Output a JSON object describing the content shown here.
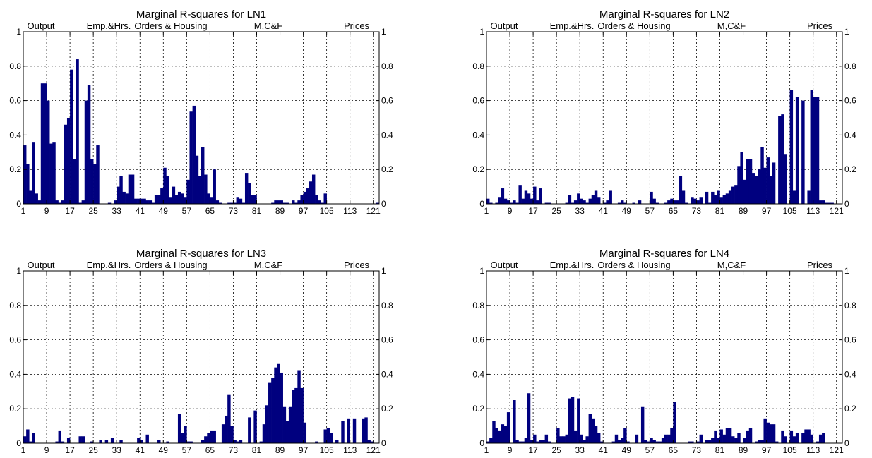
{
  "figure": {
    "bar_color": "#00007F",
    "grid_color": "#000000",
    "x_ticks": [
      1,
      9,
      17,
      25,
      33,
      41,
      49,
      57,
      65,
      73,
      81,
      89,
      97,
      105,
      113,
      121
    ],
    "y_ticks": [
      0,
      0.2,
      0.4,
      0.6,
      0.8,
      1
    ],
    "group_labels": [
      "Output",
      "Emp.&Hrs.",
      "Orders & Housing",
      "M,C&F",
      "Prices"
    ]
  },
  "chart_data": [
    {
      "type": "bar",
      "title": "Marginal R-squares for LN1",
      "grid": true,
      "xlim": [
        1,
        123
      ],
      "ylim": [
        0,
        1
      ],
      "values": [
        0.34,
        0.23,
        0.08,
        0.36,
        0.06,
        0.02,
        0.7,
        0.7,
        0.6,
        0.35,
        0.36,
        0.02,
        0.01,
        0.02,
        0.46,
        0.5,
        0.78,
        0.26,
        0.84,
        0.01,
        0.02,
        0.6,
        0.69,
        0.26,
        0.23,
        0.34,
        0.0,
        0.0,
        0.0,
        0.01,
        0.0,
        0.02,
        0.1,
        0.16,
        0.07,
        0.06,
        0.17,
        0.17,
        0.03,
        0.03,
        0.03,
        0.03,
        0.02,
        0.02,
        0.01,
        0.05,
        0.05,
        0.09,
        0.21,
        0.16,
        0.04,
        0.1,
        0.05,
        0.07,
        0.06,
        0.04,
        0.14,
        0.54,
        0.57,
        0.28,
        0.16,
        0.33,
        0.17,
        0.06,
        0.04,
        0.2,
        0.02,
        0.01,
        0.0,
        0.0,
        0.01,
        0.01,
        0.01,
        0.04,
        0.03,
        0.01,
        0.18,
        0.12,
        0.05,
        0.05,
        0.0,
        0.0,
        0.0,
        0.0,
        0.0,
        0.01,
        0.02,
        0.02,
        0.02,
        0.01,
        0.01,
        0.0,
        0.02,
        0.01,
        0.02,
        0.05,
        0.07,
        0.09,
        0.13,
        0.17,
        0.05,
        0.02,
        0.01,
        0.06,
        0.0,
        0.0,
        0.0,
        0.0,
        0.0,
        0.0,
        0.0,
        0.0,
        0.0,
        0.0,
        0.0,
        0.0,
        0.0,
        0.0,
        0.0,
        0.0,
        0.0,
        0.01,
        0.0
      ]
    },
    {
      "type": "bar",
      "title": "Marginal R-squares for LN2",
      "grid": true,
      "xlim": [
        1,
        123
      ],
      "ylim": [
        0,
        1
      ],
      "values": [
        0.03,
        0.01,
        0.0,
        0.01,
        0.04,
        0.09,
        0.03,
        0.02,
        0.01,
        0.02,
        0.01,
        0.11,
        0.03,
        0.08,
        0.06,
        0.03,
        0.1,
        0.02,
        0.09,
        0.0,
        0.01,
        0.01,
        0.0,
        0.0,
        0.0,
        0.0,
        0.0,
        0.01,
        0.05,
        0.01,
        0.02,
        0.06,
        0.03,
        0.02,
        0.01,
        0.03,
        0.05,
        0.08,
        0.04,
        0.0,
        0.01,
        0.02,
        0.08,
        0.0,
        0.0,
        0.01,
        0.02,
        0.01,
        0.0,
        0.0,
        0.01,
        0.0,
        0.02,
        0.0,
        0.0,
        0.0,
        0.07,
        0.03,
        0.01,
        0.0,
        0.0,
        0.01,
        0.02,
        0.03,
        0.02,
        0.02,
        0.16,
        0.08,
        0.01,
        0.0,
        0.04,
        0.03,
        0.02,
        0.04,
        0.0,
        0.07,
        0.01,
        0.07,
        0.05,
        0.08,
        0.04,
        0.05,
        0.06,
        0.08,
        0.1,
        0.11,
        0.22,
        0.3,
        0.14,
        0.26,
        0.26,
        0.18,
        0.16,
        0.2,
        0.33,
        0.21,
        0.27,
        0.16,
        0.24,
        0.0,
        0.51,
        0.52,
        0.29,
        0.0,
        0.66,
        0.08,
        0.62,
        0.0,
        0.6,
        0.0,
        0.08,
        0.66,
        0.62,
        0.62,
        0.02,
        0.02,
        0.01,
        0.01,
        0.01,
        0.0,
        0.0,
        0.0,
        0.0
      ]
    },
    {
      "type": "bar",
      "title": "Marginal R-squares for LN3",
      "grid": true,
      "xlim": [
        1,
        123
      ],
      "ylim": [
        0,
        1
      ],
      "values": [
        0.04,
        0.08,
        0.01,
        0.06,
        0.0,
        0.0,
        0.0,
        0.0,
        0.0,
        0.0,
        0.0,
        0.01,
        0.07,
        0.01,
        0.0,
        0.03,
        0.0,
        0.0,
        0.0,
        0.04,
        0.04,
        0.0,
        0.0,
        0.01,
        0.0,
        0.0,
        0.02,
        0.0,
        0.02,
        0.0,
        0.03,
        0.0,
        0.0,
        0.02,
        0.0,
        0.0,
        0.0,
        0.0,
        0.0,
        0.03,
        0.02,
        0.0,
        0.05,
        0.0,
        0.0,
        0.0,
        0.02,
        0.0,
        0.0,
        0.01,
        0.0,
        0.0,
        0.0,
        0.17,
        0.06,
        0.1,
        0.01,
        0.01,
        0.0,
        0.0,
        0.0,
        0.02,
        0.04,
        0.06,
        0.07,
        0.07,
        0.0,
        0.0,
        0.11,
        0.16,
        0.28,
        0.1,
        0.02,
        0.01,
        0.02,
        0.0,
        0.0,
        0.15,
        0.0,
        0.19,
        0.0,
        0.01,
        0.11,
        0.22,
        0.35,
        0.38,
        0.44,
        0.46,
        0.41,
        0.21,
        0.13,
        0.21,
        0.31,
        0.32,
        0.42,
        0.32,
        0.12,
        0.0,
        0.0,
        0.0,
        0.01,
        0.0,
        0.0,
        0.08,
        0.09,
        0.06,
        0.0,
        0.02,
        0.0,
        0.13,
        0.0,
        0.14,
        0.0,
        0.14,
        0.0,
        0.0,
        0.14,
        0.15,
        0.02,
        0.01,
        0.0,
        0.0,
        0.0
      ]
    },
    {
      "type": "bar",
      "title": "Marginal R-squares for LN4",
      "grid": true,
      "xlim": [
        1,
        123
      ],
      "ylim": [
        0,
        1
      ],
      "values": [
        0.01,
        0.03,
        0.13,
        0.09,
        0.07,
        0.11,
        0.1,
        0.18,
        0.0,
        0.25,
        0.02,
        0.01,
        0.01,
        0.03,
        0.29,
        0.02,
        0.05,
        0.01,
        0.02,
        0.02,
        0.05,
        0.01,
        0.0,
        0.0,
        0.09,
        0.04,
        0.04,
        0.05,
        0.26,
        0.27,
        0.07,
        0.26,
        0.05,
        0.02,
        0.04,
        0.17,
        0.14,
        0.1,
        0.06,
        0.01,
        0.0,
        0.0,
        0.0,
        0.01,
        0.05,
        0.02,
        0.03,
        0.09,
        0.01,
        0.0,
        0.0,
        0.05,
        0.0,
        0.21,
        0.02,
        0.01,
        0.03,
        0.02,
        0.01,
        0.01,
        0.03,
        0.05,
        0.05,
        0.09,
        0.24,
        0.0,
        0.0,
        0.0,
        0.0,
        0.01,
        0.01,
        0.0,
        0.01,
        0.05,
        0.0,
        0.02,
        0.02,
        0.03,
        0.07,
        0.03,
        0.08,
        0.05,
        0.09,
        0.09,
        0.04,
        0.03,
        0.06,
        0.0,
        0.03,
        0.07,
        0.09,
        0.0,
        0.01,
        0.02,
        0.02,
        0.14,
        0.12,
        0.11,
        0.11,
        0.01,
        0.0,
        0.07,
        0.04,
        0.0,
        0.07,
        0.04,
        0.06,
        0.0,
        0.06,
        0.08,
        0.08,
        0.05,
        0.0,
        0.01,
        0.05,
        0.06,
        0.0,
        0.0,
        0.0,
        0.0,
        0.0,
        0.0,
        0.0
      ]
    }
  ]
}
